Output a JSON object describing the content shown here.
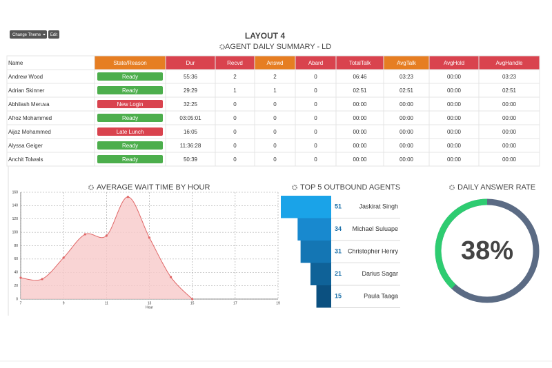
{
  "toolbar": {
    "buttons": [
      "Change Theme",
      "Edit"
    ]
  },
  "header": {
    "title": "LAYOUT 4",
    "subtitle": "AGENT DAILY SUMMARY - LD"
  },
  "table": {
    "columns": [
      {
        "label": "Name",
        "color": "#ffffff"
      },
      {
        "label": "State/Reason",
        "color": "#e67e22"
      },
      {
        "label": "Dur",
        "color": "#d9434e"
      },
      {
        "label": "Recvd",
        "color": "#d9434e"
      },
      {
        "label": "Answd",
        "color": "#e67e22"
      },
      {
        "label": "Abard",
        "color": "#d9434e"
      },
      {
        "label": "TotalTalk",
        "color": "#d9434e"
      },
      {
        "label": "AvgTalk",
        "color": "#e67e22"
      },
      {
        "label": "AvgHold",
        "color": "#d9434e"
      },
      {
        "label": "AvgHandle",
        "color": "#d9434e"
      }
    ],
    "rows": [
      [
        "Andrew Wood",
        "Ready",
        "55:36",
        "2",
        "2",
        "0",
        "06:46",
        "03:23",
        "00:00",
        "03:23"
      ],
      [
        "Adrian Skinner",
        "Ready",
        "29:29",
        "1",
        "1",
        "0",
        "02:51",
        "02:51",
        "00:00",
        "02:51"
      ],
      [
        "Abhilash Meruva",
        "New Login",
        "32:25",
        "0",
        "0",
        "0",
        "00:00",
        "00:00",
        "00:00",
        "00:00"
      ],
      [
        "Afroz Mohammed",
        "Ready",
        "03:05:01",
        "0",
        "0",
        "0",
        "00:00",
        "00:00",
        "00:00",
        "00:00"
      ],
      [
        "Aijaz Mohammed",
        "Late Lunch",
        "16:05",
        "0",
        "0",
        "0",
        "00:00",
        "00:00",
        "00:00",
        "00:00"
      ],
      [
        "Alyssa Geiger",
        "Ready",
        "11:36:28",
        "0",
        "0",
        "0",
        "00:00",
        "00:00",
        "00:00",
        "00:00"
      ],
      [
        "Anchit Tolwals",
        "Ready",
        "50:39",
        "0",
        "0",
        "0",
        "00:00",
        "00:00",
        "00:00",
        "00:00"
      ]
    ],
    "state_colors": [
      "#4cae4c",
      "#4cae4c",
      "#d9434e",
      "#4cae4c",
      "#d9434e",
      "#4cae4c",
      "#4cae4c"
    ]
  },
  "chart_data": [
    {
      "type": "area",
      "title": "AVERAGE WAIT TIME BY HOUR",
      "x_label": "Hour",
      "x": [
        7,
        8,
        9,
        10,
        11,
        12,
        13,
        14,
        15
      ],
      "values": [
        32,
        30,
        62,
        97,
        95,
        153,
        92,
        33,
        0
      ],
      "color": "#e06666",
      "fill": "#f8c9c9",
      "xlim": [
        7,
        19
      ],
      "xticks": [
        7,
        9,
        11,
        13,
        15,
        17,
        19
      ],
      "ylim": [
        0,
        160
      ],
      "yticks": [
        0,
        20,
        40,
        60,
        80,
        100,
        120,
        140,
        160
      ],
      "grid": true
    },
    {
      "type": "bar",
      "title": "TOP 5 OUTBOUND AGENTS",
      "categories": [
        "Jaskirat Singh",
        "Michael Suluape",
        "Christopher Henry",
        "Darius Sagar",
        "Paula Taaga"
      ],
      "values": [
        51,
        34,
        31,
        21,
        15
      ],
      "colors": [
        "#1aa3e8",
        "#1889cf",
        "#1476b4",
        "#0f6298",
        "#0b5080"
      ]
    },
    {
      "type": "donut",
      "title": "DAILY ANSWER RATE",
      "values": [
        38
      ],
      "value_labels": [
        "38%"
      ],
      "ylim": [
        0,
        100
      ],
      "color": "#2ecc71",
      "track_color": "#5b6b84"
    }
  ]
}
